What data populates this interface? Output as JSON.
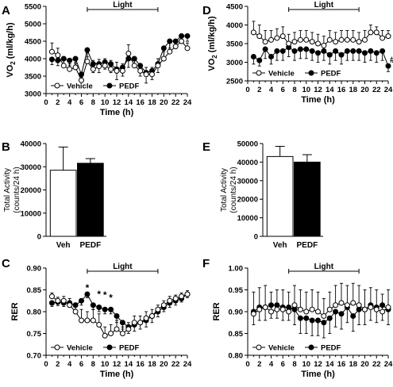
{
  "chart_data": [
    {
      "panel": "A",
      "type": "line",
      "light_label": "Light",
      "ylabel_main": "VO",
      "ylabel_sub": "2",
      "ylabel_unit": " (ml/kg/h)",
      "xlabel": "Time (h)",
      "xlim": [
        0,
        24
      ],
      "ylim": [
        3000,
        5500
      ],
      "yticks": [
        3000,
        3500,
        4000,
        4500,
        5000,
        5500
      ],
      "xticks": [
        0,
        2,
        4,
        6,
        8,
        10,
        12,
        14,
        16,
        18,
        20,
        22,
        24
      ],
      "light_range": [
        7,
        19
      ],
      "legend": [
        "Vehicle",
        "PEDF"
      ],
      "x": [
        1,
        2,
        3,
        4,
        5,
        6,
        7,
        8,
        9,
        10,
        11,
        12,
        13,
        14,
        15,
        16,
        17,
        18,
        19,
        20,
        21,
        22,
        23,
        24
      ],
      "series": [
        {
          "name": "Vehicle",
          "values": [
            4200,
            4100,
            3800,
            3700,
            3750,
            3380,
            3920,
            3700,
            3780,
            3800,
            3700,
            3650,
            3650,
            4150,
            3800,
            3650,
            3550,
            3550,
            3800,
            4000,
            4200,
            4350,
            4500,
            4300
          ],
          "err": [
            250,
            200,
            200,
            150,
            150,
            100,
            250,
            250,
            200,
            200,
            250,
            250,
            200,
            250,
            250,
            200,
            200,
            200,
            200,
            200,
            250,
            200,
            150,
            150
          ]
        },
        {
          "name": "PEDF",
          "values": [
            3980,
            3950,
            4000,
            3950,
            4000,
            3550,
            4250,
            3850,
            3850,
            3900,
            3850,
            3700,
            3750,
            4000,
            4000,
            3800,
            3600,
            3650,
            3850,
            4300,
            4500,
            4500,
            4650,
            4650
          ],
          "err": [
            150,
            150,
            150,
            150,
            150,
            150,
            200,
            250,
            250,
            200,
            250,
            300,
            250,
            250,
            250,
            300,
            300,
            250,
            250,
            250,
            200,
            200,
            150,
            150
          ]
        }
      ]
    },
    {
      "panel": "D",
      "type": "line",
      "light_label": "Light",
      "ylabel_main": "VO",
      "ylabel_sub": "2",
      "ylabel_unit": " (ml/kg/h)",
      "xlabel": "Time (h)",
      "xlim": [
        0,
        24
      ],
      "ylim": [
        2500,
        4500
      ],
      "yticks": [
        2500,
        3000,
        3500,
        4000,
        4500
      ],
      "xticks": [
        0,
        2,
        4,
        6,
        8,
        10,
        12,
        14,
        16,
        18,
        20,
        22,
        24
      ],
      "light_range": [
        7,
        19
      ],
      "legend": [
        "Vehicle",
        "PEDF"
      ],
      "annotation": "#",
      "x": [
        1,
        2,
        3,
        4,
        5,
        6,
        7,
        8,
        9,
        10,
        11,
        12,
        13,
        14,
        15,
        16,
        17,
        18,
        19,
        20,
        21,
        22,
        23,
        24
      ],
      "series": [
        {
          "name": "Vehicle",
          "values": [
            3800,
            3700,
            3550,
            3600,
            3650,
            3700,
            3500,
            3550,
            3600,
            3600,
            3550,
            3500,
            3450,
            3600,
            3550,
            3600,
            3600,
            3600,
            3550,
            3600,
            3800,
            3800,
            3650,
            3700
          ],
          "err": [
            300,
            300,
            300,
            250,
            250,
            250,
            250,
            250,
            250,
            250,
            250,
            250,
            250,
            250,
            250,
            250,
            250,
            250,
            250,
            250,
            200,
            150,
            200,
            150
          ]
        },
        {
          "name": "PEDF",
          "values": [
            3150,
            3050,
            3350,
            3150,
            3300,
            3300,
            3400,
            3300,
            3350,
            3350,
            3300,
            3250,
            3300,
            3200,
            3300,
            3200,
            3300,
            3300,
            3300,
            3250,
            3300,
            3250,
            3300,
            2900
          ],
          "err": [
            200,
            150,
            250,
            200,
            250,
            250,
            250,
            250,
            250,
            250,
            250,
            250,
            250,
            250,
            250,
            250,
            250,
            250,
            250,
            250,
            250,
            250,
            250,
            150
          ]
        }
      ]
    },
    {
      "panel": "B",
      "type": "bar",
      "ylabel": "Total Activity",
      "ylabel2": "(counts/24 h)",
      "categories": [
        "Veh",
        "PEDF"
      ],
      "values": [
        28500,
        31500
      ],
      "err": [
        10000,
        2000
      ],
      "fills": [
        "#ffffff",
        "#000000"
      ],
      "ylim": [
        0,
        40000
      ],
      "yticks": [
        0,
        10000,
        20000,
        30000,
        40000
      ]
    },
    {
      "panel": "E",
      "type": "bar",
      "ylabel": "Total Activity",
      "ylabel2": "(counts/24 h)",
      "categories": [
        "Veh",
        "PEDF"
      ],
      "values": [
        43000,
        40000
      ],
      "err": [
        5500,
        4000
      ],
      "fills": [
        "#ffffff",
        "#000000"
      ],
      "ylim": [
        0,
        50000
      ],
      "yticks": [
        0,
        10000,
        20000,
        30000,
        40000,
        50000
      ]
    },
    {
      "panel": "C",
      "type": "line",
      "light_label": "Light",
      "ylabel": "RER",
      "xlabel": "Time (h)",
      "xlim": [
        0,
        24
      ],
      "ylim": [
        0.7,
        0.9
      ],
      "ytick_decimals": 2,
      "yticks": [
        0.7,
        0.75,
        0.8,
        0.85,
        0.9
      ],
      "xticks": [
        0,
        2,
        4,
        6,
        8,
        10,
        12,
        14,
        16,
        18,
        20,
        22,
        24
      ],
      "light_range": [
        7,
        19
      ],
      "legend": [
        "Vehicle",
        "PEDF"
      ],
      "significance": [
        {
          "x": 7,
          "y": 0.855,
          "text": "*"
        },
        {
          "x": 9,
          "y": 0.84,
          "text": "*"
        },
        {
          "x": 10,
          "y": 0.838,
          "text": "*"
        },
        {
          "x": 11,
          "y": 0.832,
          "text": "*"
        }
      ],
      "x": [
        1,
        2,
        3,
        4,
        5,
        6,
        7,
        8,
        9,
        10,
        11,
        12,
        13,
        14,
        15,
        16,
        17,
        18,
        19,
        20,
        21,
        22,
        23,
        24
      ],
      "series": [
        {
          "name": "Vehicle",
          "values": [
            0.835,
            0.825,
            0.825,
            0.815,
            0.8,
            0.78,
            0.78,
            0.78,
            0.77,
            0.745,
            0.75,
            0.76,
            0.75,
            0.76,
            0.775,
            0.775,
            0.785,
            0.79,
            0.805,
            0.815,
            0.825,
            0.83,
            0.835,
            0.84
          ],
          "err": [
            0.008,
            0.008,
            0.01,
            0.015,
            0.02,
            0.025,
            0.02,
            0.025,
            0.025,
            0.02,
            0.02,
            0.02,
            0.015,
            0.015,
            0.015,
            0.015,
            0.015,
            0.015,
            0.01,
            0.01,
            0.01,
            0.008,
            0.008,
            0.008
          ]
        },
        {
          "name": "PEDF",
          "values": [
            0.82,
            0.822,
            0.82,
            0.82,
            0.815,
            0.825,
            0.84,
            0.815,
            0.81,
            0.805,
            0.805,
            0.79,
            0.775,
            0.765,
            0.77,
            0.775,
            0.78,
            0.79,
            0.8,
            0.81,
            0.82,
            0.825,
            0.83,
            0.84
          ],
          "err": [
            0.008,
            0.008,
            0.008,
            0.008,
            0.01,
            0.01,
            0.008,
            0.01,
            0.01,
            0.01,
            0.01,
            0.015,
            0.015,
            0.015,
            0.015,
            0.015,
            0.015,
            0.015,
            0.012,
            0.01,
            0.01,
            0.01,
            0.008,
            0.008
          ]
        }
      ]
    },
    {
      "panel": "F",
      "type": "line",
      "light_label": "Light",
      "ylabel": "RER",
      "xlabel": "Time (h)",
      "xlim": [
        0,
        24
      ],
      "ylim": [
        0.8,
        1.0
      ],
      "ytick_decimals": 2,
      "yticks": [
        0.8,
        0.85,
        0.9,
        0.95,
        1.0
      ],
      "xticks": [
        0,
        2,
        4,
        6,
        8,
        10,
        12,
        14,
        16,
        18,
        20,
        22,
        24
      ],
      "light_range": [
        7,
        19
      ],
      "legend": [
        "Vehicle",
        "PEDF"
      ],
      "x": [
        1,
        2,
        3,
        4,
        5,
        6,
        7,
        8,
        9,
        10,
        11,
        12,
        13,
        14,
        15,
        16,
        17,
        18,
        19,
        20,
        21,
        22,
        23,
        24
      ],
      "series": [
        {
          "name": "Vehicle",
          "values": [
            0.895,
            0.905,
            0.91,
            0.9,
            0.905,
            0.905,
            0.9,
            0.915,
            0.905,
            0.9,
            0.905,
            0.9,
            0.89,
            0.905,
            0.915,
            0.92,
            0.915,
            0.92,
            0.915,
            0.905,
            0.91,
            0.905,
            0.9,
            0.91
          ],
          "err": [
            0.05,
            0.05,
            0.05,
            0.045,
            0.045,
            0.045,
            0.045,
            0.045,
            0.045,
            0.045,
            0.045,
            0.045,
            0.04,
            0.04,
            0.045,
            0.045,
            0.045,
            0.045,
            0.045,
            0.045,
            0.045,
            0.045,
            0.04,
            0.04
          ]
        },
        {
          "name": "PEDF",
          "values": [
            0.9,
            0.91,
            0.91,
            0.915,
            0.915,
            0.91,
            0.91,
            0.905,
            0.885,
            0.885,
            0.88,
            0.88,
            0.875,
            0.885,
            0.9,
            0.895,
            0.91,
            0.89,
            0.905,
            0.905,
            0.915,
            0.91,
            0.915,
            0.905
          ],
          "err": [
            0.03,
            0.03,
            0.03,
            0.03,
            0.03,
            0.03,
            0.03,
            0.035,
            0.035,
            0.035,
            0.035,
            0.035,
            0.035,
            0.035,
            0.035,
            0.035,
            0.035,
            0.035,
            0.035,
            0.035,
            0.035,
            0.035,
            0.035,
            0.035
          ]
        }
      ]
    }
  ],
  "panel_labels": [
    "A",
    "B",
    "C",
    "D",
    "E",
    "F"
  ]
}
